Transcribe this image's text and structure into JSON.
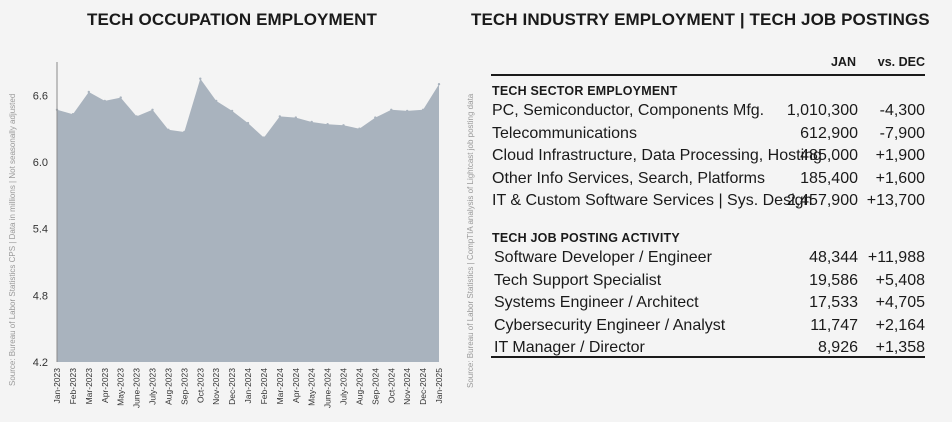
{
  "left": {
    "title": "TECH OCCUPATION EMPLOYMENT",
    "source": "Source: Bureau of Labor Statistics CPS | Data in millions | Not seasonally adjusted"
  },
  "right": {
    "title": "TECH INDUSTRY EMPLOYMENT | TECH JOB POSTINGS",
    "source": "Source: Bureau of Labor Statistics | CompTIA analysis of Lightcast job posting data",
    "col_jan": "JAN",
    "col_dec": "vs. DEC",
    "section1": {
      "title": "TECH SECTOR EMPLOYMENT",
      "rows": [
        {
          "label": "PC, Semiconductor, Components Mfg.",
          "jan": "1,010,300",
          "dec": "-4,300"
        },
        {
          "label": "Telecommunications",
          "jan": "612,900",
          "dec": "-7,900"
        },
        {
          "label": "Cloud Infrastructure, Data Processing, Hosting",
          "jan": "485,000",
          "dec": "+1,900"
        },
        {
          "label": "Other Info Services, Search, Platforms",
          "jan": "185,400",
          "dec": "+1,600"
        },
        {
          "label": "IT & Custom Software Services | Sys. Design",
          "jan": "2,457,900",
          "dec": "+13,700"
        }
      ]
    },
    "section2": {
      "title": "TECH JOB POSTING ACTIVITY",
      "rows": [
        {
          "label": "Software Developer / Engineer",
          "jan": "48,344",
          "dec": "+11,988"
        },
        {
          "label": "Tech Support Specialist",
          "jan": "19,586",
          "dec": "+5,408"
        },
        {
          "label": "Systems Engineer / Architect",
          "jan": "17,533",
          "dec": "+4,705"
        },
        {
          "label": "Cybersecurity Engineer / Analyst",
          "jan": "11,747",
          "dec": "+2,164"
        },
        {
          "label": "IT Manager / Director",
          "jan": "8,926",
          "dec": "+1,358"
        }
      ]
    }
  },
  "chart_data": {
    "type": "area",
    "title": "TECH OCCUPATION EMPLOYMENT",
    "xlabel": "",
    "ylabel": "",
    "categories": [
      "Jan-2023",
      "Feb-2023",
      "Mar-2023",
      "Apr-2023",
      "May-2023",
      "June-2023",
      "July-2023",
      "Aug-2023",
      "Sep-2023",
      "Oct-2023",
      "Nov-2023",
      "Dec-2023",
      "Jan-2024",
      "Feb-2024",
      "Mar-2024",
      "Apr-2024",
      "May-2024",
      "June-2024",
      "July-2024",
      "Aug-2024",
      "Sep-2024",
      "Oct-2024",
      "Nov-2024",
      "Dec-2024",
      "Jan-2025"
    ],
    "values": [
      6.47,
      6.43,
      6.63,
      6.55,
      6.58,
      6.41,
      6.47,
      6.29,
      6.27,
      6.75,
      6.55,
      6.46,
      6.35,
      6.22,
      6.41,
      6.4,
      6.36,
      6.34,
      6.33,
      6.3,
      6.4,
      6.47,
      6.46,
      6.47,
      6.7
    ],
    "ylim": [
      4.2,
      6.9
    ],
    "yticks": [
      4.2,
      4.8,
      5.4,
      6.0,
      6.6
    ],
    "ytick_labels": [
      "4.2",
      "4.8",
      "5.4",
      "6.0",
      "6.6"
    ],
    "fill_color": "#a9b3be",
    "grid": false,
    "legend": "none"
  }
}
